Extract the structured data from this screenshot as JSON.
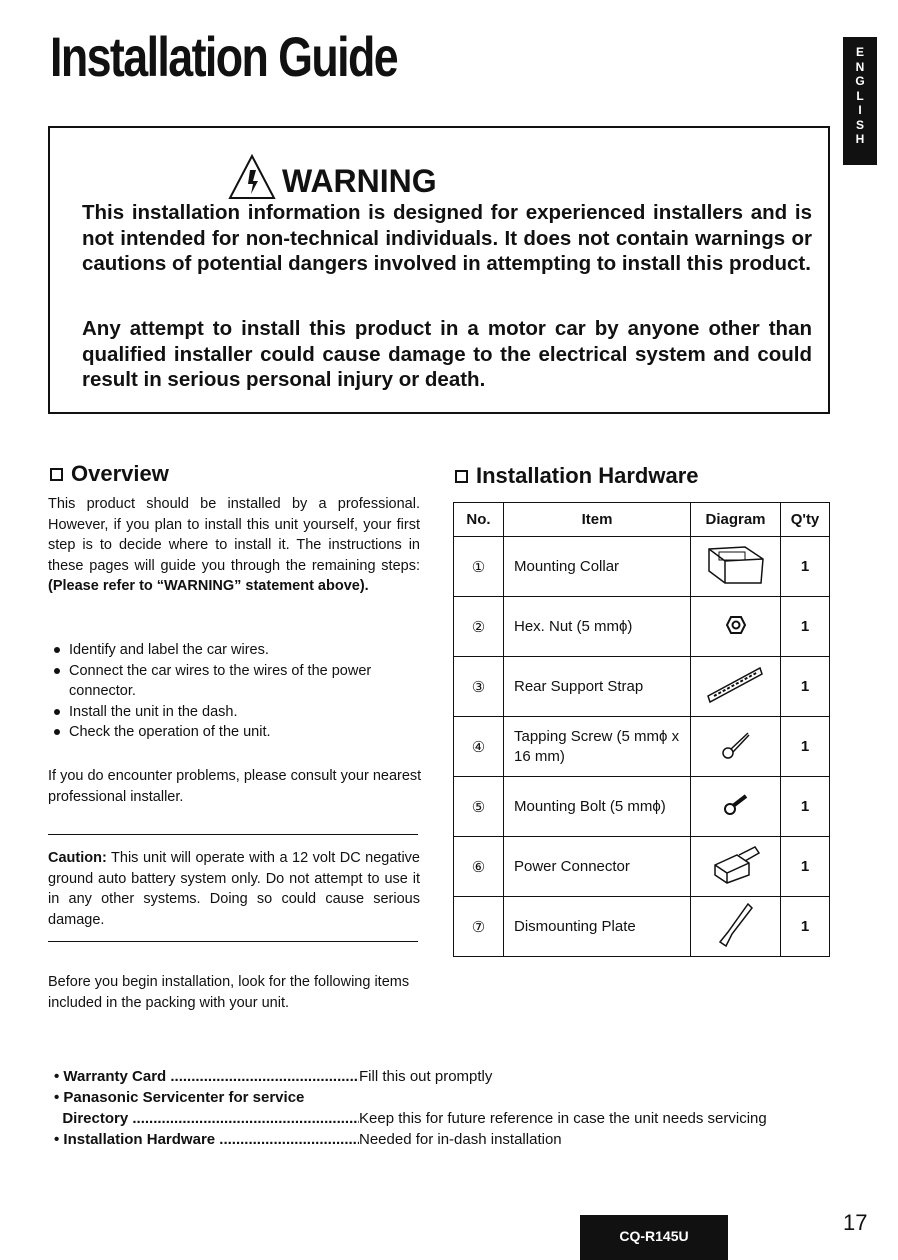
{
  "title": "Installation Guide",
  "language_tab": [
    "E",
    "N",
    "G",
    "L",
    "I",
    "S",
    "H"
  ],
  "warning": {
    "heading": "WARNING",
    "para1": "This installation information is designed for experienced installers and is not intended for non-technical individuals. It does not contain warnings or cautions of potential dangers involved in attempting to install this product.",
    "para2": "Any attempt to install this product in a motor car by anyone other than qualified installer could cause damage to the electrical system and could result in serious personal injury or death."
  },
  "overview": {
    "heading": "Overview",
    "intro": "This product should be installed by a professional. However, if you plan to install this unit yourself, your first step is to decide where to install it. The instructions in these pages will guide you through the remaining steps: ",
    "intro_bold": "(Please refer to “WARNING” statement above).",
    "steps": [
      "Identify and label the car wires.",
      "Connect the car wires to the wires of the power connector.",
      "Install the unit in the dash.",
      "Check the operation of the unit."
    ],
    "problems": "If you do encounter problems, please consult your nearest professional installer.",
    "caution_label": "Caution:",
    "caution": " This unit will operate with a 12 volt DC negative ground auto battery system only. Do not attempt to use it in any other systems. Doing so could cause serious damage.",
    "before": "Before you begin installation, look for the following items included in the packing with your unit."
  },
  "hardware": {
    "heading": "Installation Hardware",
    "columns": [
      "No.",
      "Item",
      "Diagram",
      "Q'ty"
    ],
    "rows": [
      {
        "no": "①",
        "item": "Mounting Collar",
        "diagram": "mounting-collar",
        "qty": "1"
      },
      {
        "no": "②",
        "item": "Hex. Nut (5 mmϕ)",
        "diagram": "hex-nut",
        "qty": "1"
      },
      {
        "no": "③",
        "item": "Rear Support Strap",
        "diagram": "support-strap",
        "qty": "1"
      },
      {
        "no": "④",
        "item": "Tapping Screw (5 mmϕ x 16 mm)",
        "diagram": "tapping-screw",
        "qty": "1"
      },
      {
        "no": "⑤",
        "item": "Mounting Bolt (5 mmϕ)",
        "diagram": "mounting-bolt",
        "qty": "1"
      },
      {
        "no": "⑥",
        "item": "Power Connector",
        "diagram": "power-connector",
        "qty": "1"
      },
      {
        "no": "⑦",
        "item": "Dismounting Plate",
        "diagram": "dismounting-plate",
        "qty": "1"
      }
    ]
  },
  "packing": [
    {
      "item": "• Warranty Card ......................................................",
      "note": "Fill this out promptly"
    },
    {
      "item": "• Panasonic Servicenter for service",
      "note": ""
    },
    {
      "item": "  Directory ................................................................",
      "note": "Keep this for future reference in case the unit needs servicing"
    },
    {
      "item": "• Installation Hardware ...........................................",
      "note": "Needed for in-dash installation"
    }
  ],
  "footer": {
    "model": "CQ-R145U",
    "page": "17"
  }
}
